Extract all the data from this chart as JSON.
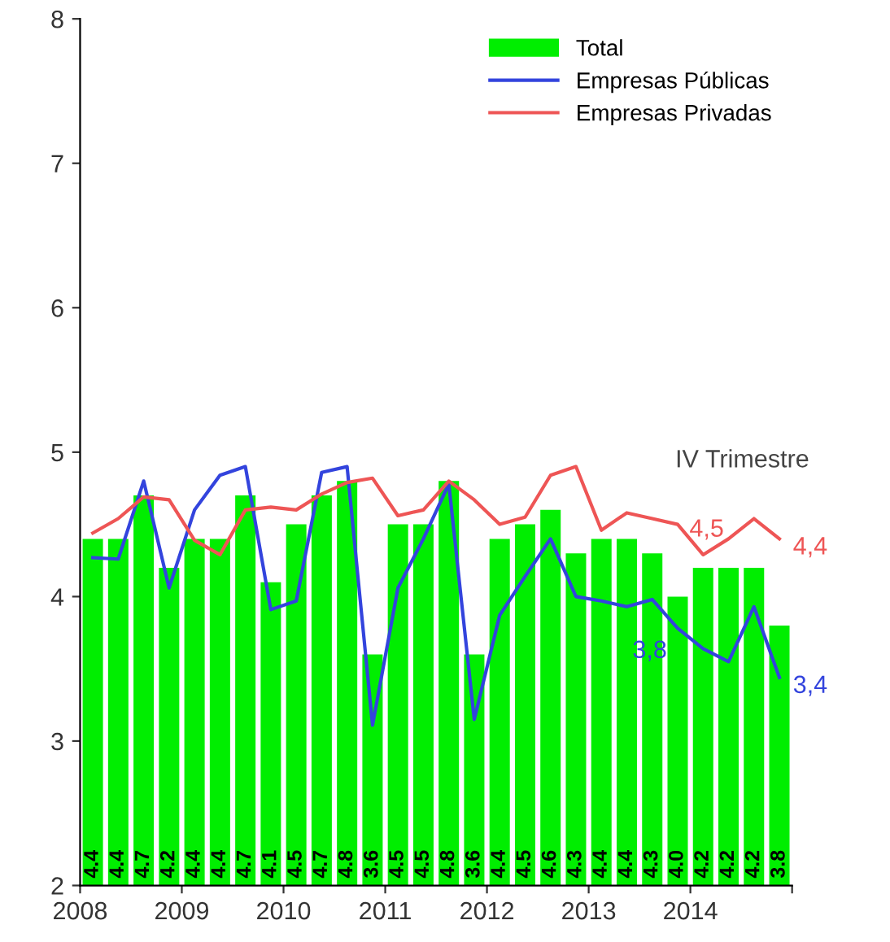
{
  "chart_data": {
    "type": "bar",
    "x": [
      2008.125,
      2008.375,
      2008.625,
      2008.875,
      2009.125,
      2009.375,
      2009.625,
      2009.875,
      2010.125,
      2010.375,
      2010.625,
      2010.875,
      2011.125,
      2011.375,
      2011.625,
      2011.875,
      2012.125,
      2012.375,
      2012.625,
      2012.875,
      2013.125,
      2013.375,
      2013.625,
      2013.875,
      2014.125,
      2014.375,
      2014.625,
      2014.875
    ],
    "series": [
      {
        "name": "Total",
        "color": "#00ee00",
        "values": [
          4.4,
          4.4,
          4.7,
          4.2,
          4.4,
          4.4,
          4.7,
          4.1,
          4.5,
          4.7,
          4.8,
          3.6,
          4.5,
          4.5,
          4.8,
          3.6,
          4.4,
          4.5,
          4.6,
          4.3,
          4.4,
          4.4,
          4.3,
          4.0,
          4.2,
          4.2,
          4.2,
          3.8
        ],
        "value_labels": [
          "4.4",
          "4.4",
          "4.7",
          "4.2",
          "4.4",
          "4.4",
          "4.7",
          "4.1",
          "4.5",
          "4.7",
          "4.8",
          "3.6",
          "4.5",
          "4.5",
          "4.8",
          "3.6",
          "4.4",
          "4.5",
          "4.6",
          "4.3",
          "4.4",
          "4.4",
          "4.3",
          "4.0",
          "4.2",
          "4.2",
          "4.2",
          "3.8"
        ]
      },
      {
        "name": "Empresas Públicas",
        "type": "line",
        "color": "#3344dd",
        "values": [
          4.27,
          4.26,
          4.8,
          4.06,
          4.6,
          4.84,
          4.9,
          3.91,
          3.97,
          4.86,
          4.9,
          3.11,
          4.06,
          4.4,
          4.78,
          3.15,
          3.87,
          4.14,
          4.4,
          4.0,
          3.97,
          3.93,
          3.98,
          3.78,
          3.64,
          3.55,
          3.93,
          3.44
        ]
      },
      {
        "name": "Empresas Privadas",
        "type": "line",
        "color": "#ee5555",
        "values": [
          4.44,
          4.54,
          4.69,
          4.67,
          4.39,
          4.29,
          4.6,
          4.62,
          4.6,
          4.71,
          4.79,
          4.82,
          4.56,
          4.6,
          4.8,
          4.67,
          4.5,
          4.55,
          4.84,
          4.9,
          4.46,
          4.58,
          4.54,
          4.5,
          4.29,
          4.4,
          4.54,
          4.4
        ]
      }
    ],
    "xlim": [
      2008,
      2015
    ],
    "xticks": [
      2008,
      2009,
      2010,
      2011,
      2012,
      2013,
      2014,
      {
        "value": 2015,
        "label": null
      }
    ],
    "ylim": [
      2,
      8
    ],
    "yticks": [
      2,
      3,
      4,
      5,
      6,
      7,
      8
    ],
    "annotations": [
      "IV Trimestre",
      "4,5",
      "3,8",
      {
        "text": "4,4",
        "x": 2014.875,
        "y": 4.4
      },
      {
        "text": "3,4",
        "x": 2014.875,
        "y": 3.44
      }
    ],
    "grid": false,
    "legend": "top right"
  }
}
